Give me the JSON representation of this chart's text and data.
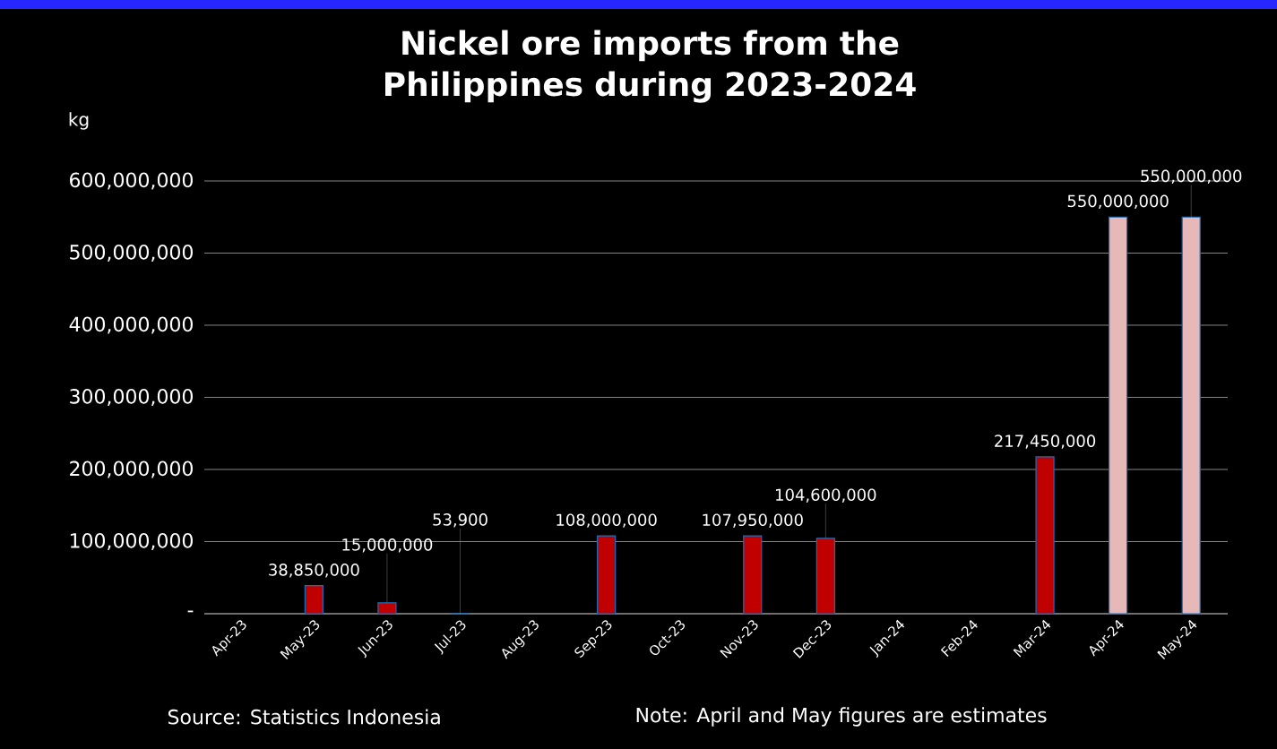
{
  "chart_data": {
    "type": "bar",
    "title": "Nickel ore imports from the Philippines during 2023-2024",
    "ylabel": "kg",
    "categories": [
      "Apr-23",
      "May-23",
      "Jun-23",
      "Jul-23",
      "Aug-23",
      "Sep-23",
      "Oct-23",
      "Nov-23",
      "Dec-23",
      "Jan-24",
      "Feb-24",
      "Mar-24",
      "Apr-24",
      "May-24"
    ],
    "values": [
      null,
      38850000,
      15000000,
      53900,
      null,
      108000000,
      null,
      107950000,
      104600000,
      null,
      null,
      217450000,
      550000000,
      550000000
    ],
    "value_labels": [
      null,
      "38,850,000",
      "15,000,000",
      "53,900",
      null,
      "108,000,000",
      null,
      "107,950,000",
      "104,600,000",
      null,
      null,
      "217,450,000",
      "550,000,000",
      "550,000,000"
    ],
    "colors": [
      "#c00000",
      "#c00000",
      "#c00000",
      "#c00000",
      "#c00000",
      "#c00000",
      "#c00000",
      "#c00000",
      "#c00000",
      "#c00000",
      "#c00000",
      "#c00000",
      "#e6b8b7",
      "#e6b8b7"
    ],
    "ylim": [
      0,
      600000000
    ],
    "yticks": [
      {
        "value": 0,
        "label": "-"
      },
      {
        "value": 100000000,
        "label": "100,000,000"
      },
      {
        "value": 200000000,
        "label": "200,000,000"
      },
      {
        "value": 300000000,
        "label": "300,000,000"
      },
      {
        "value": 400000000,
        "label": "400,000,000"
      },
      {
        "value": 500000000,
        "label": "500,000,000"
      },
      {
        "value": 600000000,
        "label": "600,000,000"
      }
    ],
    "grid": "y",
    "annotations": [
      "Source: Statistics Indonesia",
      "Note: April and May figures are estimates"
    ]
  }
}
